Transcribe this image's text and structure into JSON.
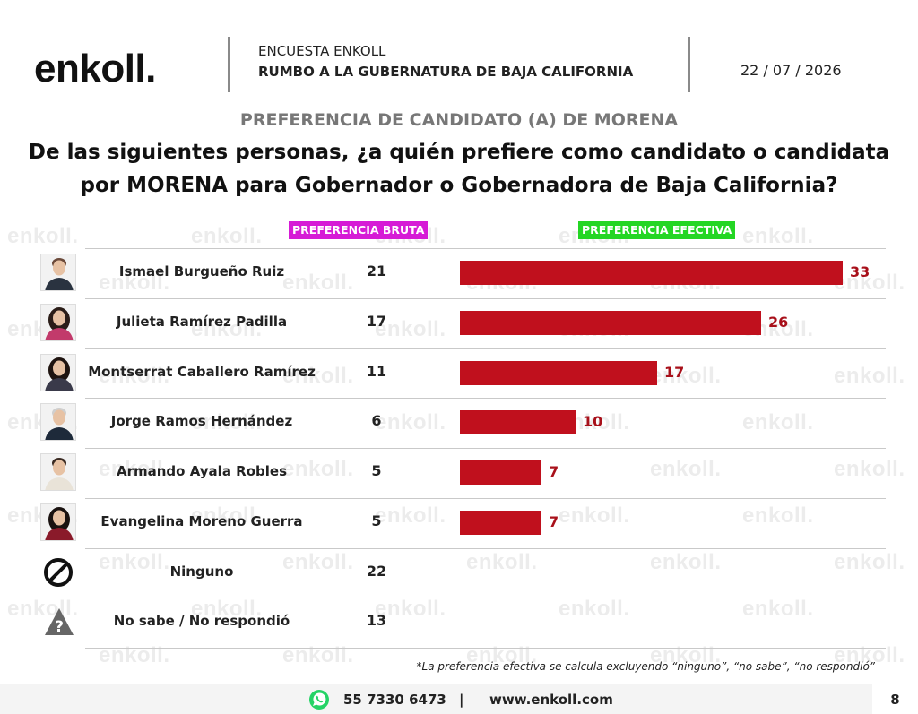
{
  "header": {
    "logo": "enkoll.",
    "survey_label": "ENCUESTA ENKOLL",
    "survey_title": "RUMBO A LA GUBERNATURA DE BAJA CALIFORNIA",
    "date": "22 / 07 / 2026"
  },
  "subtitle": "PREFERENCIA DE CANDIDATO (A) DE MORENA",
  "question": "De las siguientes personas, ¿a quién prefiere como candidato o candidata por MORENA para Gobernador o Gobernadora de Baja California?",
  "watermark": "enkoll.",
  "chart_data": {
    "type": "bar",
    "orientation": "horizontal",
    "columns": {
      "bruta": "PREFERENCIA BRUTA",
      "efectiva": "PREFERENCIA EFECTIVA"
    },
    "colors": {
      "bar": "#c0101d",
      "bruta_tag": "#d61bd6",
      "efectiva_tag": "#24d624"
    },
    "xlim": [
      0,
      33
    ],
    "rows": [
      {
        "name": "Ismael Burgueño Ruiz",
        "bruta": "21",
        "efectiva": 33,
        "efectiva_label": "33",
        "icon": "man-portrait-icon",
        "tone": "#6b4a3a",
        "shirt": "#2a3340"
      },
      {
        "name": "Julieta Ramírez Padilla",
        "bruta": "17",
        "efectiva": 26,
        "efectiva_label": "26",
        "icon": "woman-portrait-icon",
        "tone": "#2b1d18",
        "shirt": "#c23a6b"
      },
      {
        "name": "Montserrat Caballero Ramírez",
        "bruta": "11",
        "efectiva": 17,
        "efectiva_label": "17",
        "icon": "woman-portrait-icon",
        "tone": "#1f1410",
        "shirt": "#3a3a4a"
      },
      {
        "name": "Jorge Ramos Hernández",
        "bruta": "6",
        "efectiva": 10,
        "efectiva_label": "10",
        "icon": "man-portrait-icon",
        "tone": "#cfcfcf",
        "shirt": "#1e2a3a"
      },
      {
        "name": "Armando Ayala Robles",
        "bruta": "5",
        "efectiva": 7,
        "efectiva_label": "7",
        "icon": "man-portrait-icon",
        "tone": "#3a2a22",
        "shirt": "#e9e3d8"
      },
      {
        "name": "Evangelina Moreno Guerra",
        "bruta": "5",
        "efectiva": 7,
        "efectiva_label": "7",
        "icon": "woman-portrait-icon",
        "tone": "#1a1210",
        "shirt": "#8a1a2a"
      },
      {
        "name": "Ninguno",
        "bruta": "22",
        "icon": "prohibited-icon"
      },
      {
        "name": "No sabe / No respondió",
        "bruta": "13",
        "icon": "question-warning-icon"
      }
    ],
    "footnote": "*La preferencia efectiva se calcula excluyendo “ninguno”, “no sabe”, “no respondió”"
  },
  "footer": {
    "phone": "55 7330 6473",
    "separator": "|",
    "website": "www.enkoll.com",
    "page": "8",
    "whatsapp_icon": "whatsapp-icon"
  }
}
